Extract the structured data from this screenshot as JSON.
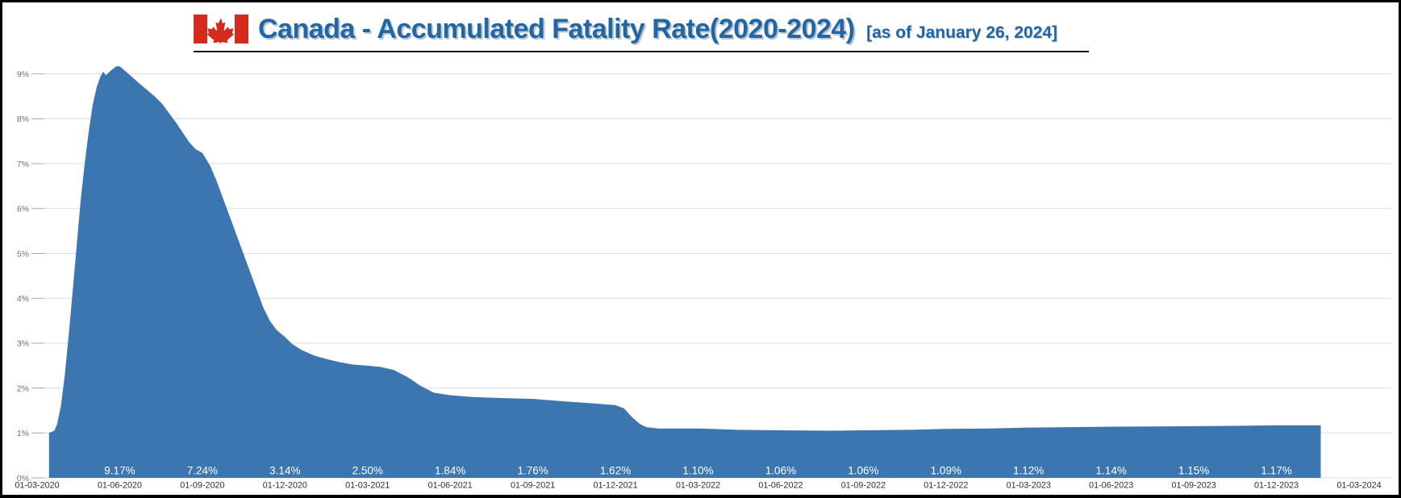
{
  "header": {
    "title": "Canada - Accumulated Fatality Rate(2020-2024)",
    "subtitle": "[as of January 26, 2024]",
    "flag_icon": "canada-flag",
    "title_color": "#2166a5"
  },
  "chart_data": {
    "type": "area",
    "title": "Canada - Accumulated Fatality Rate(2020-2024)",
    "as_of": "January 26, 2024",
    "xlabel": "",
    "ylabel": "",
    "ylim": [
      0,
      9.6
    ],
    "yticks_percent": [
      0,
      1,
      2,
      3,
      4,
      5,
      6,
      7,
      8,
      9
    ],
    "grid": true,
    "legend": "none",
    "area_color": "#3b76b0",
    "value_label_color": "#ffffff",
    "x_tick_dates": [
      "01-03-2020",
      "01-06-2020",
      "01-09-2020",
      "01-12-2020",
      "01-03-2021",
      "01-06-2021",
      "01-09-2021",
      "01-12-2021",
      "01-03-2022",
      "01-06-2022",
      "01-09-2022",
      "01-12-2022",
      "01-03-2023",
      "01-06-2023",
      "01-09-2023",
      "01-12-2023",
      "01-03-2024"
    ],
    "quarterly_labels": [
      {
        "date": "01-06-2020",
        "value": "9.17%"
      },
      {
        "date": "01-09-2020",
        "value": "7.24%"
      },
      {
        "date": "01-12-2020",
        "value": "3.14%"
      },
      {
        "date": "01-03-2021",
        "value": "2.50%"
      },
      {
        "date": "01-06-2021",
        "value": "1.84%"
      },
      {
        "date": "01-09-2021",
        "value": "1.76%"
      },
      {
        "date": "01-12-2021",
        "value": "1.62%"
      },
      {
        "date": "01-03-2022",
        "value": "1.10%"
      },
      {
        "date": "01-06-2022",
        "value": "1.06%"
      },
      {
        "date": "01-09-2022",
        "value": "1.06%"
      },
      {
        "date": "01-12-2022",
        "value": "1.09%"
      },
      {
        "date": "01-03-2023",
        "value": "1.12%"
      },
      {
        "date": "01-06-2023",
        "value": "1.14%"
      },
      {
        "date": "01-09-2023",
        "value": "1.15%"
      },
      {
        "date": "01-12-2023",
        "value": "1.17%"
      }
    ],
    "series": [
      {
        "name": "Accumulated fatality rate",
        "x_axis_span": [
          "01-03-2020",
          "01-03-2024"
        ],
        "points_x_fraction_value_pct": [
          [
            0.009,
            1.0
          ],
          [
            0.013,
            1.05
          ],
          [
            0.015,
            1.18
          ],
          [
            0.018,
            1.6
          ],
          [
            0.021,
            2.3
          ],
          [
            0.024,
            3.2
          ],
          [
            0.027,
            4.2
          ],
          [
            0.03,
            5.2
          ],
          [
            0.033,
            6.2
          ],
          [
            0.036,
            7.0
          ],
          [
            0.039,
            7.7
          ],
          [
            0.042,
            8.3
          ],
          [
            0.045,
            8.7
          ],
          [
            0.048,
            8.95
          ],
          [
            0.05,
            9.05
          ],
          [
            0.052,
            8.97
          ],
          [
            0.056,
            9.08
          ],
          [
            0.06,
            9.17
          ],
          [
            0.0625,
            9.17
          ],
          [
            0.066,
            9.08
          ],
          [
            0.07,
            8.98
          ],
          [
            0.075,
            8.85
          ],
          [
            0.08,
            8.72
          ],
          [
            0.085,
            8.6
          ],
          [
            0.09,
            8.47
          ],
          [
            0.095,
            8.32
          ],
          [
            0.1,
            8.12
          ],
          [
            0.105,
            7.92
          ],
          [
            0.11,
            7.7
          ],
          [
            0.115,
            7.48
          ],
          [
            0.12,
            7.32
          ],
          [
            0.125,
            7.24
          ],
          [
            0.131,
            6.95
          ],
          [
            0.136,
            6.6
          ],
          [
            0.141,
            6.2
          ],
          [
            0.146,
            5.8
          ],
          [
            0.151,
            5.4
          ],
          [
            0.156,
            5.0
          ],
          [
            0.161,
            4.6
          ],
          [
            0.166,
            4.2
          ],
          [
            0.171,
            3.8
          ],
          [
            0.176,
            3.5
          ],
          [
            0.181,
            3.3
          ],
          [
            0.1875,
            3.14
          ],
          [
            0.193,
            2.98
          ],
          [
            0.2,
            2.85
          ],
          [
            0.21,
            2.72
          ],
          [
            0.22,
            2.64
          ],
          [
            0.23,
            2.57
          ],
          [
            0.24,
            2.52
          ],
          [
            0.25,
            2.5
          ],
          [
            0.26,
            2.47
          ],
          [
            0.27,
            2.4
          ],
          [
            0.28,
            2.25
          ],
          [
            0.29,
            2.05
          ],
          [
            0.3,
            1.9
          ],
          [
            0.3125,
            1.84
          ],
          [
            0.33,
            1.8
          ],
          [
            0.35,
            1.78
          ],
          [
            0.375,
            1.76
          ],
          [
            0.4,
            1.7
          ],
          [
            0.42,
            1.66
          ],
          [
            0.4375,
            1.62
          ],
          [
            0.444,
            1.55
          ],
          [
            0.45,
            1.35
          ],
          [
            0.456,
            1.2
          ],
          [
            0.461,
            1.13
          ],
          [
            0.47,
            1.1
          ],
          [
            0.5,
            1.1
          ],
          [
            0.53,
            1.07
          ],
          [
            0.5625,
            1.06
          ],
          [
            0.6,
            1.05
          ],
          [
            0.625,
            1.06
          ],
          [
            0.66,
            1.07
          ],
          [
            0.6875,
            1.09
          ],
          [
            0.72,
            1.1
          ],
          [
            0.75,
            1.12
          ],
          [
            0.78,
            1.13
          ],
          [
            0.8125,
            1.14
          ],
          [
            0.845,
            1.145
          ],
          [
            0.875,
            1.15
          ],
          [
            0.91,
            1.16
          ],
          [
            0.9375,
            1.17
          ],
          [
            0.955,
            1.17
          ],
          [
            0.971,
            1.17
          ]
        ]
      }
    ]
  }
}
